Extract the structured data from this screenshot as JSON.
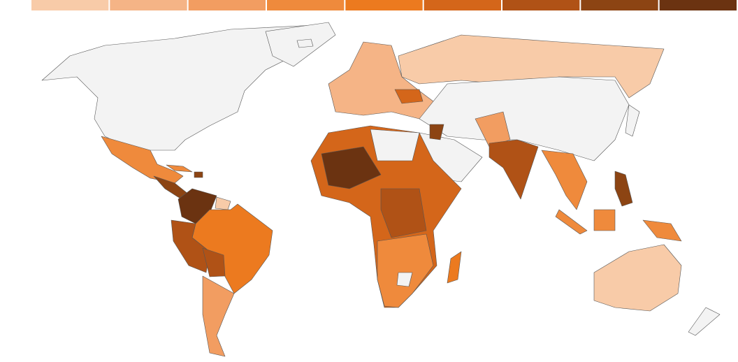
{
  "legend": {
    "colors": [
      "#f8cba8",
      "#f5b486",
      "#f29d61",
      "#ef8a3c",
      "#ec7a1f",
      "#d4661a",
      "#b05216",
      "#8c4413",
      "#6b3311"
    ]
  }
}
